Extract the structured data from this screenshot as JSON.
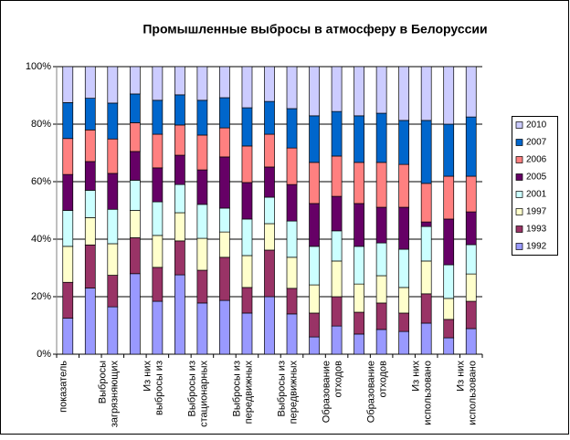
{
  "chart_data": {
    "type": "stacked_bar_100",
    "title": "Промышленные выбросы в атмосферу в Белоруссии",
    "categories": [
      "показатель",
      null,
      "Выбросы\nзагрязняющих",
      null,
      "Из них\nвыбросы из",
      null,
      "Выбросы из\nстационарных",
      null,
      "Выбросы из\nпередвижных",
      null,
      "Выбросы из\nпередвижных",
      null,
      "Образование\nотходов",
      null,
      "Образование\nотходов",
      null,
      "Из них\nиспользовано",
      null,
      "Из них\nиспользовано"
    ],
    "series": [
      {
        "name": "1992",
        "color": "#9999ff",
        "values": [
          12.5,
          23,
          16.5,
          28,
          18.4,
          27.6,
          17.8,
          18.7,
          14.3,
          20,
          14,
          6,
          9.8,
          7,
          8.6,
          7.9,
          10.8,
          5.7,
          8.9
        ]
      },
      {
        "name": "1993",
        "color": "#993366",
        "values": [
          12.5,
          15,
          11,
          12.5,
          11.8,
          11.8,
          11.4,
          15,
          8.9,
          16.2,
          8.9,
          8.3,
          10.2,
          7.6,
          9.2,
          6.4,
          10.2,
          6.4,
          9.5
        ]
      },
      {
        "name": "1997",
        "color": "#ffffcc",
        "values": [
          12.5,
          9.5,
          11,
          9.5,
          11.1,
          9.8,
          11.1,
          8.8,
          11.1,
          9.2,
          10.8,
          9.8,
          12.4,
          9.8,
          9.5,
          8.9,
          11.4,
          7.3,
          9.5
        ]
      },
      {
        "name": "2001",
        "color": "#ccffff",
        "values": [
          12.5,
          9.5,
          12,
          10.5,
          11.7,
          9.8,
          11.8,
          8.3,
          12.7,
          9.2,
          12.6,
          13.4,
          10.5,
          13.1,
          11.4,
          13.3,
          12,
          11.7,
          10.2
        ]
      },
      {
        "name": "2005",
        "color": "#660066",
        "values": [
          12.5,
          10,
          12.5,
          10,
          11.8,
          10.2,
          12,
          17.8,
          12.7,
          10.5,
          12.7,
          14.9,
          12,
          14.9,
          12.4,
          14.6,
          1.6,
          15.9,
          11.4
        ]
      },
      {
        "name": "2006",
        "color": "#ff8080",
        "values": [
          12.5,
          11,
          12,
          10,
          11.7,
          10.5,
          12.1,
          10.1,
          12.7,
          11.4,
          12.7,
          14.3,
          14,
          14.3,
          15.6,
          14.9,
          13.4,
          14.9,
          12.4
        ]
      },
      {
        "name": "2007",
        "color": "#0066cc",
        "values": [
          12.5,
          11,
          12.5,
          10,
          11.8,
          10.5,
          12.1,
          10.5,
          13.3,
          11.4,
          13.7,
          16.2,
          15.5,
          16.2,
          17.1,
          15.3,
          21.9,
          18.1,
          20.6
        ]
      },
      {
        "name": "2010",
        "color": "#ccccff",
        "values": [
          12.5,
          11,
          12.7,
          9.5,
          11.7,
          9.8,
          11.7,
          10.8,
          14.3,
          12.1,
          14.6,
          17.1,
          15.6,
          17.1,
          16.2,
          18.7,
          18.7,
          20,
          17.5
        ]
      }
    ],
    "ylim": [
      0,
      100
    ],
    "yticks": [
      {
        "value": 0,
        "label": "0%"
      },
      {
        "value": 20,
        "label": "20%"
      },
      {
        "value": 40,
        "label": "40%"
      },
      {
        "value": 60,
        "label": "60%"
      },
      {
        "value": 80,
        "label": "80%"
      },
      {
        "value": 100,
        "label": "100%"
      }
    ],
    "grid": true,
    "legend": "right"
  }
}
